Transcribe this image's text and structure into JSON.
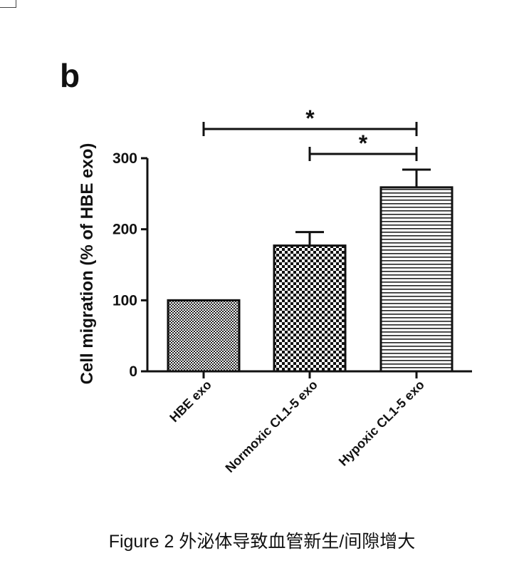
{
  "panel_letter": "b",
  "caption": "Figure 2 外泌体导致血管新生/间隙增大",
  "chart_data": {
    "type": "bar",
    "categories": [
      "HBE exo",
      "Normoxic CL1-5 exo",
      "Hypoxic CL1-5 exo"
    ],
    "values": [
      100,
      177,
      259
    ],
    "error": [
      0,
      19,
      25
    ],
    "patterns": [
      "fine-checker",
      "coarse-checker",
      "horizontal-lines"
    ],
    "ylabel": "Cell migration (% of HBE exo)",
    "xlabel": "",
    "ylim": [
      0,
      300
    ],
    "yticks": [
      0,
      100,
      200,
      300
    ],
    "grid": false,
    "significance": [
      {
        "from": 0,
        "to": 2,
        "label": "*"
      },
      {
        "from": 1,
        "to": 2,
        "label": "*"
      }
    ],
    "colors": {
      "ink": "#111111",
      "fill_dark": "#1a1a1a",
      "fill_light": "#ffffff"
    }
  }
}
